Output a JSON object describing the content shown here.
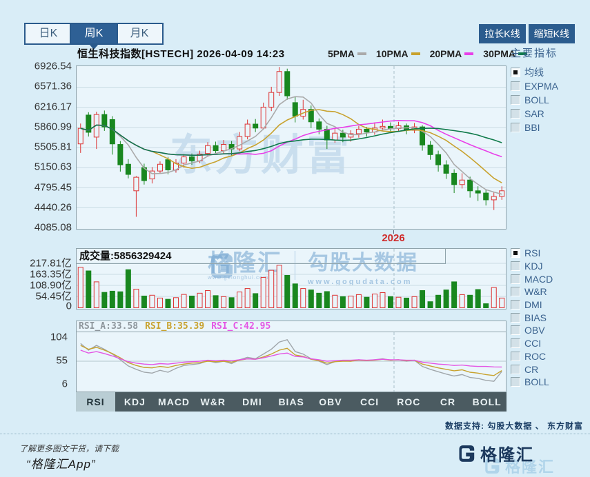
{
  "toolbar": {
    "period_tabs": [
      {
        "label": "日K",
        "name": "tab-day-k",
        "selected": false
      },
      {
        "label": "周K",
        "name": "tab-week-k",
        "selected": true
      },
      {
        "label": "月K",
        "name": "tab-month-k",
        "selected": false
      }
    ],
    "stretch_label": "拉长K线",
    "shrink_label": "缩短K线"
  },
  "sidebar": {
    "title": "主要指标",
    "main_indicators": [
      {
        "label": "均线",
        "checked": true
      },
      {
        "label": "EXPMA",
        "checked": false
      },
      {
        "label": "BOLL",
        "checked": false
      },
      {
        "label": "SAR",
        "checked": false
      },
      {
        "label": "BBI",
        "checked": false
      }
    ],
    "sub_indicators": [
      {
        "label": "RSI",
        "checked": true
      },
      {
        "label": "KDJ",
        "checked": false
      },
      {
        "label": "MACD",
        "checked": false
      },
      {
        "label": "W&R",
        "checked": false
      },
      {
        "label": "DMI",
        "checked": false
      },
      {
        "label": "BIAS",
        "checked": false
      },
      {
        "label": "OBV",
        "checked": false
      },
      {
        "label": "CCI",
        "checked": false
      },
      {
        "label": "ROC",
        "checked": false
      },
      {
        "label": "CR",
        "checked": false
      },
      {
        "label": "BOLL",
        "checked": false
      }
    ]
  },
  "bottom_tabs": [
    {
      "label": "RSI",
      "selected": true
    },
    {
      "label": "KDJ",
      "selected": false
    },
    {
      "label": "MACD",
      "selected": false
    },
    {
      "label": "W&R",
      "selected": false
    },
    {
      "label": "DMI",
      "selected": false
    },
    {
      "label": "BIAS",
      "selected": false
    },
    {
      "label": "OBV",
      "selected": false
    },
    {
      "label": "CCI",
      "selected": false
    },
    {
      "label": "ROC",
      "selected": false
    },
    {
      "label": "CR",
      "selected": false
    },
    {
      "label": "BOLL",
      "selected": false
    }
  ],
  "watermarks": {
    "kline_text": "东方财富",
    "volume_brand": "格隆汇",
    "volume_brand_url": "www.gelonghui.com",
    "volume_partner": "勾股大数据",
    "volume_url": "www.gogudata.com"
  },
  "footer": {
    "data_support": "数据支持: 勾股大数据 、 东方财富",
    "promo_line1": "了解更多图文干货，请下载",
    "promo_line2": "“格隆汇App”",
    "brand": "格隆汇"
  },
  "colors": {
    "background": "#d9edf7",
    "panel_bg": "#eaf5fb",
    "panel_border": "#8fa3ab",
    "grid": "#c9dbe3",
    "navy": "#2b5c8e",
    "up_red": "#dd3333",
    "down_green": "#19871f",
    "year_dash": "#a8bfca",
    "year_label_red": "#cf2a2a"
  },
  "chart_data": {
    "type": "candlestick",
    "kline": {
      "title": "恒生科技指数[HSTECH] 2026-04-09 14:23",
      "y_ticks": [
        "6926.54",
        "6571.36",
        "6216.17",
        "5860.99",
        "5505.81",
        "5150.63",
        "4795.45",
        "4440.26",
        "4085.08"
      ],
      "y_range": [
        4085.08,
        6926.54
      ],
      "x_label": "2026",
      "ma_periods": [
        5,
        10,
        20,
        30
      ],
      "ma_legend": [
        {
          "label": "5PMA",
          "color": "#aaaaaa"
        },
        {
          "label": "10PMA",
          "color": "#c8a22e"
        },
        {
          "label": "20PMA",
          "color": "#e93fe9"
        },
        {
          "label": "30PMA",
          "color": "#0f7a4a"
        }
      ],
      "candles_ohlc": [
        [
          5570,
          5930,
          5410,
          5845
        ],
        [
          6080,
          6130,
          5700,
          5775
        ],
        [
          5690,
          6140,
          5480,
          6090
        ],
        [
          6090,
          6160,
          5800,
          5870
        ],
        [
          6000,
          6060,
          5380,
          5570
        ],
        [
          5560,
          5620,
          5080,
          5200
        ],
        [
          5210,
          5300,
          4960,
          5030
        ],
        [
          4740,
          5000,
          4280,
          4980
        ],
        [
          5150,
          5220,
          4850,
          4920
        ],
        [
          4950,
          5160,
          4870,
          5090
        ],
        [
          5090,
          5260,
          5040,
          5210
        ],
        [
          5290,
          5340,
          5030,
          5110
        ],
        [
          5110,
          5300,
          5060,
          5230
        ],
        [
          5230,
          5390,
          5150,
          5340
        ],
        [
          5340,
          5400,
          5200,
          5270
        ],
        [
          5270,
          5450,
          5230,
          5390
        ],
        [
          5400,
          5600,
          5340,
          5540
        ],
        [
          5540,
          5610,
          5390,
          5450
        ],
        [
          5450,
          5640,
          5400,
          5560
        ],
        [
          5560,
          5620,
          5350,
          5480
        ],
        [
          5480,
          5780,
          5440,
          5700
        ],
        [
          5700,
          6000,
          5650,
          5920
        ],
        [
          5920,
          6010,
          5780,
          5850
        ],
        [
          5850,
          6300,
          5820,
          6220
        ],
        [
          6220,
          6580,
          6150,
          6480
        ],
        [
          6480,
          6930,
          6420,
          6850
        ],
        [
          6850,
          6900,
          6350,
          6420
        ],
        [
          6300,
          6400,
          5950,
          6060
        ],
        [
          6060,
          6350,
          6000,
          6180
        ],
        [
          6180,
          6250,
          5850,
          5960
        ],
        [
          5960,
          6020,
          5740,
          5830
        ],
        [
          5830,
          5890,
          5480,
          5640
        ],
        [
          5640,
          5840,
          5590,
          5760
        ],
        [
          5760,
          5820,
          5600,
          5690
        ],
        [
          5690,
          5810,
          5610,
          5750
        ],
        [
          5750,
          5890,
          5680,
          5830
        ],
        [
          5830,
          5870,
          5700,
          5780
        ],
        [
          5780,
          5950,
          5730,
          5850
        ],
        [
          5850,
          6000,
          5800,
          5880
        ],
        [
          5880,
          5950,
          5760,
          5840
        ],
        [
          5840,
          5960,
          5800,
          5890
        ],
        [
          5890,
          5930,
          5740,
          5810
        ],
        [
          5810,
          5940,
          5760,
          5870
        ],
        [
          5870,
          5900,
          5450,
          5550
        ],
        [
          5550,
          5620,
          5290,
          5380
        ],
        [
          5380,
          5450,
          5080,
          5200
        ],
        [
          5200,
          5280,
          4950,
          5050
        ],
        [
          5050,
          5120,
          4700,
          4850
        ],
        [
          4850,
          5050,
          4780,
          4930
        ],
        [
          4930,
          4990,
          4620,
          4740
        ],
        [
          4740,
          4820,
          4560,
          4700
        ],
        [
          4700,
          4760,
          4480,
          4580
        ],
        [
          4580,
          4720,
          4400,
          4640
        ],
        [
          4640,
          4820,
          4580,
          4740
        ]
      ]
    },
    "volume": {
      "label": "成交量:5856329424",
      "y_ticks": [
        "217.81亿",
        "163.35亿",
        "108.90亿",
        "54.45亿",
        "0"
      ],
      "unit": "亿",
      "tick_step_value": 54.45,
      "values": [
        200,
        182,
        128,
        76,
        82,
        79,
        188,
        92,
        58,
        62,
        48,
        42,
        50,
        66,
        58,
        72,
        85,
        60,
        55,
        50,
        78,
        95,
        70,
        150,
        185,
        210,
        160,
        118,
        95,
        88,
        72,
        80,
        62,
        55,
        58,
        65,
        52,
        68,
        75,
        55,
        52,
        48,
        55,
        85,
        30,
        62,
        88,
        128,
        65,
        62,
        90,
        20,
        100,
        48
      ]
    },
    "rsi": {
      "y_ticks": [
        104,
        55,
        6
      ],
      "labels": [
        {
          "text": "RSI_A:33.58",
          "color": "#8e969c"
        },
        {
          "text": "RSI_B:35.39",
          "color": "#c8a22e"
        },
        {
          "text": "RSI_C:42.95",
          "color": "#e455e4"
        }
      ],
      "series": [
        {
          "name": "RSI_A",
          "color": "#a0a6aa",
          "values": [
            92,
            78,
            88,
            80,
            70,
            58,
            45,
            38,
            32,
            30,
            36,
            32,
            40,
            46,
            48,
            50,
            56,
            52,
            55,
            50,
            58,
            63,
            60,
            70,
            80,
            95,
            100,
            75,
            70,
            60,
            55,
            48,
            54,
            56,
            55,
            58,
            56,
            58,
            60,
            57,
            58,
            55,
            57,
            44,
            38,
            33,
            28,
            24,
            27,
            21,
            19,
            15,
            13,
            33.58
          ]
        },
        {
          "name": "RSI_B",
          "color": "#c8a22e",
          "values": [
            88,
            80,
            84,
            78,
            71,
            62,
            52,
            46,
            42,
            41,
            44,
            42,
            46,
            49,
            51,
            52,
            55,
            54,
            55,
            53,
            57,
            60,
            59,
            64,
            70,
            78,
            82,
            68,
            65,
            59,
            56,
            51,
            54,
            55,
            55,
            57,
            56,
            57,
            59,
            57,
            58,
            56,
            57,
            49,
            45,
            41,
            38,
            35,
            37,
            32,
            30,
            27,
            25,
            35.39
          ]
        },
        {
          "name": "RSI_C",
          "color": "#e455e4",
          "values": [
            78,
            72,
            75,
            71,
            66,
            60,
            54,
            51,
            49,
            48,
            50,
            49,
            51,
            53,
            54,
            55,
            57,
            56,
            57,
            56,
            58,
            60,
            59,
            62,
            66,
            70,
            72,
            65,
            64,
            60,
            58,
            55,
            56,
            57,
            57,
            58,
            57,
            58,
            59,
            58,
            58,
            57,
            57,
            53,
            51,
            49,
            48,
            46,
            47,
            45,
            44,
            44,
            43,
            42.95
          ]
        }
      ]
    }
  }
}
